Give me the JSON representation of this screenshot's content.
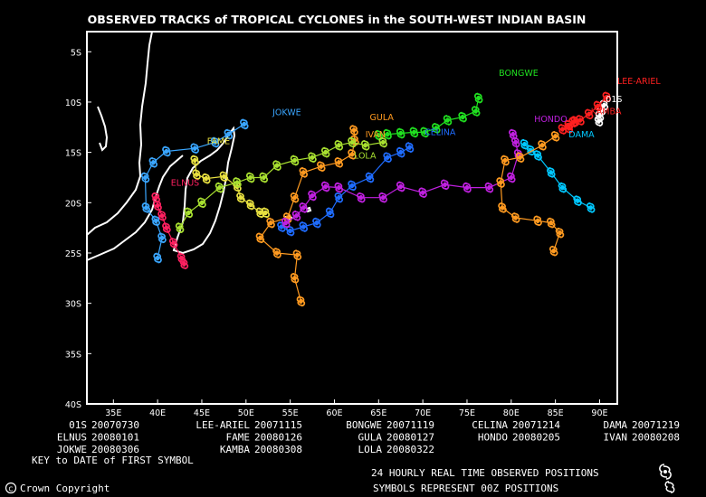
{
  "title": "OBSERVED TRACKS of TROPICAL CYCLONES in the SOUTH-WEST INDIAN BASIN",
  "axes": {
    "lon_range": [
      32,
      92
    ],
    "lat_range": [
      -40,
      -3
    ],
    "lon_ticks": [
      "35E",
      "40E",
      "45E",
      "50E",
      "55E",
      "60E",
      "65E",
      "70E",
      "75E",
      "80E",
      "85E",
      "90E"
    ],
    "lat_ticks": [
      "5S",
      "10S",
      "15S",
      "20S",
      "25S",
      "30S",
      "35S",
      "40S"
    ]
  },
  "legend_rows": [
    [
      {
        "name": "01S",
        "date": "20070730"
      },
      {
        "name": "LEE-ARIEL",
        "date": "20071115"
      },
      {
        "name": "BONGWE",
        "date": "20071119"
      },
      {
        "name": "CELINA",
        "date": "20071214"
      },
      {
        "name": "DAMA",
        "date": "20071219"
      }
    ],
    [
      {
        "name": "ELNUS",
        "date": "20080101"
      },
      {
        "name": "FAME",
        "date": "20080126"
      },
      {
        "name": "GULA",
        "date": "20080127"
      },
      {
        "name": "HONDO",
        "date": "20080205"
      },
      {
        "name": "IVAN",
        "date": "20080208"
      }
    ],
    [
      {
        "name": "JOKWE",
        "date": "20080306"
      },
      {
        "name": "KAMBA",
        "date": "20080308"
      },
      {
        "name": "LOLA",
        "date": "20080322"
      }
    ]
  ],
  "key_text": "KEY to DATE of FIRST SYMBOL",
  "realtime_text": "24 HOURLY REAL TIME OBSERVED POSITIONS",
  "symbols_text": "SYMBOLS REPRESENT 00Z POSITIONS",
  "copyright": "Crown Copyright",
  "storms": [
    {
      "name": "01S",
      "color": "#ffffff",
      "label": [
        90.7,
        -10.0
      ],
      "track": [
        [
          90.5,
          -10.3
        ],
        [
          90.2,
          -10.8
        ],
        [
          90.0,
          -11.4
        ],
        [
          89.9,
          -11.9
        ]
      ]
    },
    {
      "name": "LEE-ARIEL",
      "color": "#ff2020",
      "label": [
        92.0,
        -8.2
      ],
      "track": [
        [
          90.8,
          -9.5
        ],
        [
          89.8,
          -10.4
        ],
        [
          88.8,
          -11.2
        ],
        [
          87.8,
          -11.8
        ],
        [
          87.0,
          -12.0
        ],
        [
          86.5,
          -12.6
        ]
      ]
    },
    {
      "name": "BONGWE",
      "color": "#20e020",
      "label": [
        78.6,
        -7.4
      ],
      "track": [
        [
          76.3,
          -9.6
        ],
        [
          76.0,
          -10.9
        ],
        [
          74.5,
          -11.5
        ],
        [
          72.8,
          -11.8
        ],
        [
          71.5,
          -12.6
        ],
        [
          70.2,
          -13.0
        ],
        [
          69.0,
          -13.0
        ],
        [
          67.5,
          -13.1
        ],
        [
          66.0,
          -13.2
        ],
        [
          65.0,
          -13.3
        ]
      ]
    },
    {
      "name": "CELINA",
      "color": "#1f6cff",
      "label": [
        70.2,
        -13.3
      ],
      "track": [
        [
          68.5,
          -14.5
        ],
        [
          67.5,
          -15.0
        ],
        [
          66.0,
          -15.5
        ],
        [
          64.0,
          -17.5
        ],
        [
          62.0,
          -18.3
        ],
        [
          60.5,
          -19.5
        ],
        [
          59.5,
          -21.0
        ],
        [
          58.0,
          -22.0
        ],
        [
          56.5,
          -22.4
        ],
        [
          55.0,
          -22.8
        ],
        [
          54.0,
          -22.4
        ]
      ]
    },
    {
      "name": "DAMA",
      "color": "#00c8ff",
      "label": [
        86.5,
        -13.5
      ],
      "track": [
        [
          81.5,
          -14.2
        ],
        [
          82.2,
          -14.8
        ],
        [
          83.0,
          -15.3
        ],
        [
          84.5,
          -17.0
        ],
        [
          85.8,
          -18.5
        ],
        [
          87.5,
          -19.8
        ],
        [
          89.0,
          -20.5
        ]
      ]
    },
    {
      "name": "ELNUS",
      "color": "#ff2060",
      "label": [
        41.5,
        -18.3
      ],
      "track": [
        [
          39.8,
          -19.5
        ],
        [
          40.0,
          -20.3
        ],
        [
          40.5,
          -21.3
        ],
        [
          41.0,
          -22.5
        ],
        [
          41.8,
          -24.0
        ],
        [
          42.7,
          -25.5
        ],
        [
          43.0,
          -26.1
        ]
      ]
    },
    {
      "name": "FAME",
      "color": "#e8e040",
      "label": [
        45.6,
        -14.2
      ],
      "track": [
        [
          44.2,
          -15.8
        ],
        [
          44.4,
          -17.2
        ],
        [
          45.5,
          -17.6
        ],
        [
          47.5,
          -17.4
        ],
        [
          49.0,
          -18.4
        ],
        [
          49.4,
          -19.5
        ],
        [
          50.5,
          -20.2
        ],
        [
          51.6,
          -21.0
        ],
        [
          52.2,
          -21.0
        ]
      ]
    },
    {
      "name": "GULA",
      "color": "#ff9a20",
      "label": [
        64.0,
        -11.8
      ],
      "track": [
        [
          62.2,
          -12.8
        ],
        [
          62.3,
          -13.8
        ],
        [
          62.0,
          -15.2
        ],
        [
          60.5,
          -16.0
        ],
        [
          58.5,
          -16.4
        ],
        [
          56.5,
          -17.0
        ],
        [
          55.5,
          -19.5
        ],
        [
          54.7,
          -21.5
        ],
        [
          52.8,
          -22.0
        ],
        [
          51.6,
          -23.5
        ],
        [
          53.5,
          -25.0
        ],
        [
          55.8,
          -25.2
        ],
        [
          55.5,
          -27.5
        ],
        [
          56.2,
          -29.8
        ]
      ]
    },
    {
      "name": "HONDO",
      "color": "#c020e0",
      "label": [
        82.6,
        -12.0
      ],
      "track": [
        [
          80.2,
          -13.2
        ],
        [
          80.5,
          -14.0
        ],
        [
          80.8,
          -15.2
        ],
        [
          80.0,
          -17.5
        ],
        [
          77.5,
          -18.5
        ],
        [
          75.0,
          -18.5
        ],
        [
          72.5,
          -18.2
        ],
        [
          70.0,
          -19.0
        ],
        [
          67.5,
          -18.4
        ],
        [
          65.5,
          -19.5
        ],
        [
          63.0,
          -19.5
        ],
        [
          60.5,
          -18.5
        ],
        [
          59.0,
          -18.4
        ],
        [
          57.5,
          -19.3
        ],
        [
          56.5,
          -20.5
        ],
        [
          55.7,
          -21.3
        ],
        [
          54.5,
          -22.0
        ]
      ]
    },
    {
      "name": "IVAN",
      "color": "#ff9a20",
      "label": [
        63.5,
        -13.5
      ],
      "track": [
        [
          85.0,
          -13.4
        ],
        [
          83.5,
          -14.3
        ],
        [
          81.0,
          -15.5
        ],
        [
          79.3,
          -15.8
        ],
        [
          78.8,
          -18.0
        ],
        [
          79.0,
          -20.5
        ],
        [
          80.5,
          -21.5
        ],
        [
          83.0,
          -21.8
        ],
        [
          84.5,
          -22.0
        ],
        [
          85.5,
          -23.0
        ],
        [
          84.8,
          -24.8
        ]
      ]
    },
    {
      "name": "JOKWE",
      "color": "#3aa6ff",
      "label": [
        53.0,
        -11.3
      ],
      "track": [
        [
          49.8,
          -12.2
        ],
        [
          48.0,
          -13.2
        ],
        [
          46.5,
          -14.0
        ],
        [
          44.2,
          -14.6
        ],
        [
          41.0,
          -14.9
        ],
        [
          39.5,
          -16.0
        ],
        [
          38.6,
          -17.5
        ],
        [
          38.7,
          -20.5
        ],
        [
          39.8,
          -21.8
        ],
        [
          40.5,
          -23.5
        ],
        [
          40.0,
          -25.5
        ]
      ]
    },
    {
      "name": "KAMBA",
      "color": "#ff2020",
      "label": [
        89.0,
        -11.2
      ],
      "track": [
        [
          87.2,
          -11.9
        ],
        [
          86.5,
          -12.3
        ],
        [
          85.8,
          -12.7
        ]
      ]
    },
    {
      "name": "LOLA",
      "color": "#a8e030",
      "label": [
        62.2,
        -15.6
      ],
      "track": [
        [
          65.5,
          -14.0
        ],
        [
          63.5,
          -14.3
        ],
        [
          62.0,
          -14.0
        ],
        [
          60.5,
          -14.3
        ],
        [
          59.0,
          -15.0
        ],
        [
          57.5,
          -15.5
        ],
        [
          55.5,
          -15.8
        ],
        [
          53.5,
          -16.3
        ],
        [
          52.0,
          -17.5
        ],
        [
          50.5,
          -17.5
        ],
        [
          49.0,
          -18.0
        ],
        [
          47.0,
          -18.5
        ],
        [
          45.0,
          -20.0
        ],
        [
          43.5,
          -21.0
        ],
        [
          42.5,
          -22.5
        ]
      ]
    }
  ]
}
